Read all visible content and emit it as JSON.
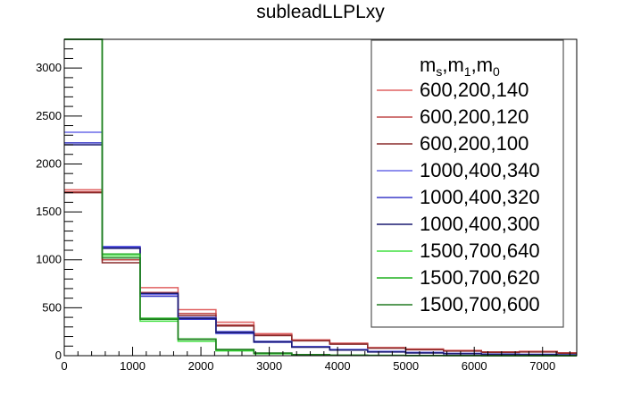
{
  "chart_data": {
    "type": "histogram",
    "title": "subleadLLPLxy",
    "xlabel": "",
    "ylabel": "",
    "xlim": [
      0,
      7500
    ],
    "ylim": [
      0,
      3300
    ],
    "x_ticks": [
      0,
      1000,
      2000,
      3000,
      4000,
      5000,
      6000,
      7000
    ],
    "x_tick_labels": [
      "0",
      "1000",
      "2000",
      "3000",
      "4000",
      "5000",
      "6000",
      "7000"
    ],
    "y_ticks": [
      0,
      500,
      1000,
      1500,
      2000,
      2500,
      3000
    ],
    "y_tick_labels": [
      "0",
      "500",
      "1000",
      "1500",
      "2000",
      "2500",
      "3000"
    ],
    "bin_edges": [
      0,
      555,
      1110,
      1665,
      2220,
      2775,
      3330,
      3885,
      4440,
      4995,
      5550,
      6105,
      6660,
      7215,
      7500
    ],
    "legend": {
      "placement": "top-right",
      "header_parts": [
        "m",
        "s",
        ",m",
        "1",
        ",m",
        "0"
      ]
    },
    "series": [
      {
        "name": "600,200,140",
        "color": "#e06060",
        "values": [
          1730,
          1130,
          710,
          480,
          350,
          230,
          165,
          130,
          85,
          70,
          55,
          40,
          45,
          30
        ]
      },
      {
        "name": "600,200,120",
        "color": "#c04848",
        "values": [
          1710,
          1000,
          660,
          440,
          320,
          215,
          160,
          125,
          80,
          65,
          50,
          38,
          40,
          28
        ]
      },
      {
        "name": "600,200,100",
        "color": "#8a2a2a",
        "values": [
          1700,
          970,
          640,
          420,
          310,
          210,
          155,
          120,
          78,
          62,
          48,
          35,
          38,
          25
        ]
      },
      {
        "name": "1000,400,340",
        "color": "#6a6ae8",
        "values": [
          2330,
          1140,
          640,
          400,
          230,
          150,
          95,
          65,
          45,
          35,
          25,
          18,
          15,
          10
        ]
      },
      {
        "name": "1000,400,320",
        "color": "#3a3ac8",
        "values": [
          2220,
          1130,
          620,
          380,
          250,
          140,
          90,
          60,
          40,
          30,
          22,
          15,
          12,
          8
        ]
      },
      {
        "name": "1000,400,300",
        "color": "#1a1a70",
        "values": [
          2200,
          1120,
          650,
          390,
          240,
          145,
          88,
          58,
          38,
          28,
          20,
          14,
          11,
          7
        ]
      },
      {
        "name": "1500,700,640",
        "color": "#40e040",
        "values": [
          3300,
          1040,
          360,
          150,
          50,
          20,
          8,
          4,
          2,
          1,
          1,
          0,
          0,
          0
        ]
      },
      {
        "name": "1500,700,620",
        "color": "#20b020",
        "values": [
          3300,
          1060,
          390,
          175,
          60,
          25,
          10,
          5,
          3,
          1,
          1,
          0,
          0,
          0
        ]
      },
      {
        "name": "1500,700,600",
        "color": "#207a20",
        "values": [
          3300,
          1020,
          380,
          170,
          65,
          28,
          12,
          6,
          3,
          2,
          1,
          0,
          0,
          0
        ]
      }
    ]
  }
}
